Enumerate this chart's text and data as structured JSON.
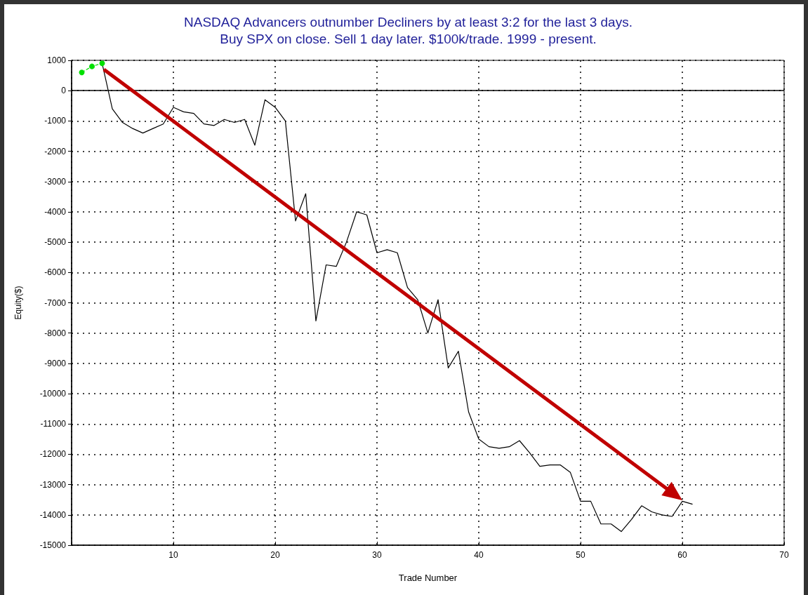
{
  "chart_data": {
    "type": "line",
    "title": "NASDAQ Advancers outnumber Decliners by at least 3:2 for the last 3 days.\nBuy SPX on close. Sell 1 day later. $100k/trade. 1999 - present.",
    "xlabel": "Trade Number",
    "ylabel": "Equity($)",
    "series": [
      {
        "color": "#00e000",
        "marker": "circle",
        "line_style": "dashed",
        "x": [
          1,
          2,
          3
        ],
        "values": [
          600,
          800,
          900
        ]
      },
      {
        "color": "#000000",
        "marker": "none",
        "line_style": "solid",
        "x": [
          3,
          4,
          5,
          6,
          7,
          8,
          9,
          10,
          11,
          12,
          13,
          14,
          15,
          16,
          17,
          18,
          19,
          20,
          21,
          22,
          23,
          24,
          25,
          26,
          27,
          28,
          29,
          30,
          31,
          32,
          33,
          34,
          35,
          36,
          37,
          38,
          39,
          40,
          41,
          42,
          43,
          44,
          45,
          46,
          47,
          48,
          49,
          50,
          51,
          52,
          53,
          54,
          55,
          56,
          57,
          58,
          59,
          60,
          61
        ],
        "values": [
          900,
          -600,
          -1050,
          -1250,
          -1400,
          -1250,
          -1100,
          -550,
          -700,
          -750,
          -1100,
          -1150,
          -950,
          -1050,
          -950,
          -1800,
          -300,
          -550,
          -1000,
          -4300,
          -3400,
          -7600,
          -5750,
          -5800,
          -5000,
          -4000,
          -4100,
          -5350,
          -5250,
          -5350,
          -6500,
          -6900,
          -8000,
          -6900,
          -9150,
          -8600,
          -10600,
          -11500,
          -11750,
          -11800,
          -11750,
          -11550,
          -11950,
          -12400,
          -12350,
          -12350,
          -12600,
          -13550,
          -13550,
          -14300,
          -14300,
          -14550,
          -14150,
          -13700,
          -13900,
          -14000,
          -14050,
          -13550,
          -13650
        ]
      }
    ],
    "xlim": [
      0,
      70
    ],
    "xticks": [
      {
        "value": 0,
        "label": null
      },
      10,
      20,
      30,
      40,
      50,
      60,
      70
    ],
    "ylim": [
      -15000,
      1000
    ],
    "yticks": [
      -15000,
      -14000,
      -13000,
      -12000,
      -11000,
      -10000,
      -9000,
      -8000,
      -7000,
      -6000,
      -5000,
      -4000,
      -3000,
      -2000,
      -1000,
      0,
      1000
    ],
    "ref_lines": [
      {
        "axis": "y",
        "value": 0,
        "color": "#000000",
        "line_style": "solid"
      }
    ],
    "grid": true
  }
}
